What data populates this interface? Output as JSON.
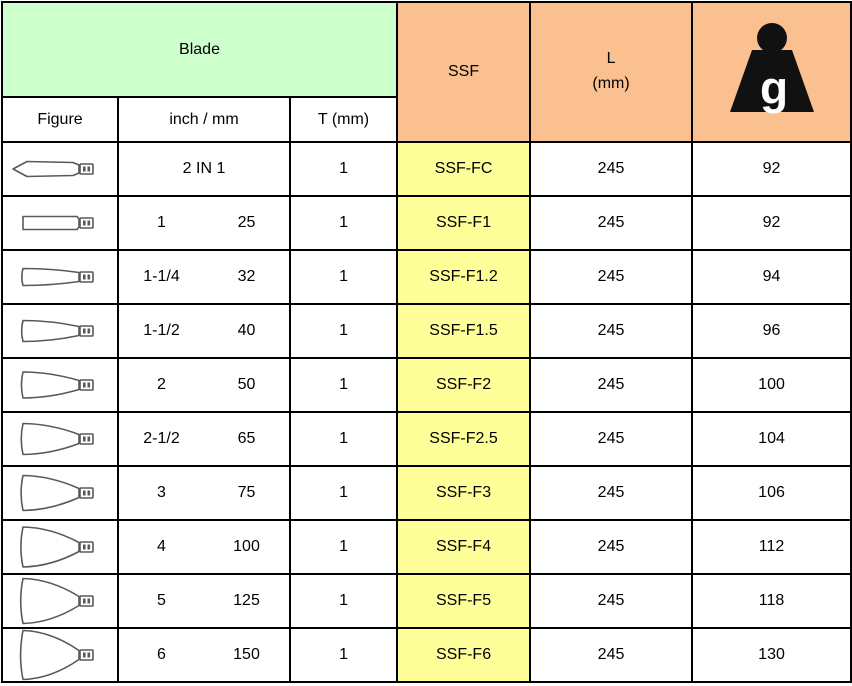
{
  "colors": {
    "header_green": "#CCFFCC",
    "header_orange": "#FAC090",
    "ssf_yellow": "#FFFF99",
    "border_black": "#000000",
    "figure_gray": "#595959"
  },
  "table": {
    "header": {
      "blade_label": "Blade",
      "ssf_label": "SSF",
      "l_label_line1": "L",
      "l_label_line2": "(mm)",
      "weight_unit": "g"
    },
    "subheader": {
      "figure_label": "Figure",
      "inch_mm_label": "inch / mm",
      "t_label": "T (mm)"
    },
    "rows": [
      {
        "figure_icon": "blade-2in1-pointed-icon",
        "figure": {
          "type": "pointed",
          "size": 15
        },
        "inch": "2 IN 1",
        "mm": "",
        "t": "1",
        "ssf": "SSF-FC",
        "l": "245",
        "g": "92"
      },
      {
        "figure_icon": "blade-straight-icon",
        "figure": {
          "type": "rect",
          "size": 13
        },
        "inch": "1",
        "mm": "25",
        "t": "1",
        "ssf": "SSF-F1",
        "l": "245",
        "g": "92"
      },
      {
        "figure_icon": "blade-fan-icon",
        "figure": {
          "type": "fan",
          "size": 17
        },
        "inch": "1-1/4",
        "mm": "32",
        "t": "1",
        "ssf": "SSF-F1.2",
        "l": "245",
        "g": "94"
      },
      {
        "figure_icon": "blade-fan-icon",
        "figure": {
          "type": "fan",
          "size": 21
        },
        "inch": "1-1/2",
        "mm": "40",
        "t": "1",
        "ssf": "SSF-F1.5",
        "l": "245",
        "g": "96"
      },
      {
        "figure_icon": "blade-fan-icon",
        "figure": {
          "type": "fan",
          "size": 26
        },
        "inch": "2",
        "mm": "50",
        "t": "1",
        "ssf": "SSF-F2",
        "l": "245",
        "g": "100"
      },
      {
        "figure_icon": "blade-fan-icon",
        "figure": {
          "type": "fan",
          "size": 31
        },
        "inch": "2-1/2",
        "mm": "65",
        "t": "1",
        "ssf": "SSF-F2.5",
        "l": "245",
        "g": "104"
      },
      {
        "figure_icon": "blade-fan-icon",
        "figure": {
          "type": "fan",
          "size": 35
        },
        "inch": "3",
        "mm": "75",
        "t": "1",
        "ssf": "SSF-F3",
        "l": "245",
        "g": "106"
      },
      {
        "figure_icon": "blade-fan-icon",
        "figure": {
          "type": "fan",
          "size": 40
        },
        "inch": "4",
        "mm": "100",
        "t": "1",
        "ssf": "SSF-F4",
        "l": "245",
        "g": "112"
      },
      {
        "figure_icon": "blade-fan-icon",
        "figure": {
          "type": "fan",
          "size": 45
        },
        "inch": "5",
        "mm": "125",
        "t": "1",
        "ssf": "SSF-F5",
        "l": "245",
        "g": "118"
      },
      {
        "figure_icon": "blade-fan-icon",
        "figure": {
          "type": "fan",
          "size": 49
        },
        "inch": "6",
        "mm": "150",
        "t": "1",
        "ssf": "SSF-F6",
        "l": "245",
        "g": "130"
      }
    ]
  }
}
